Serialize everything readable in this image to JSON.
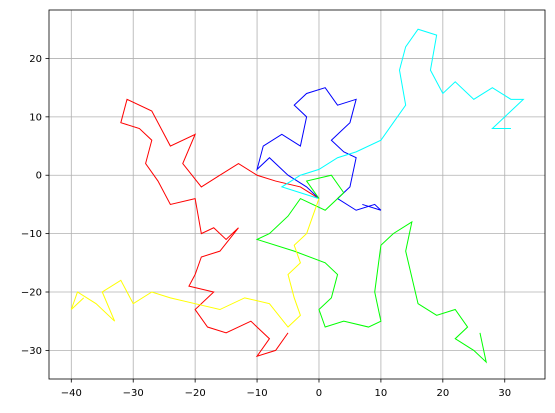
{
  "chart_data": {
    "type": "line",
    "grid": true,
    "xlim": [
      -43.6,
      36.5
    ],
    "ylim": [
      -34.9,
      28.3
    ],
    "xticks": [
      {
        "value": -40,
        "label": "−40"
      },
      {
        "value": -30,
        "label": "−30"
      },
      {
        "value": -20,
        "label": "−20"
      },
      {
        "value": -10,
        "label": "−10"
      },
      0,
      10,
      20,
      30
    ],
    "yticks": [
      {
        "value": -30,
        "label": "−30"
      },
      {
        "value": -20,
        "label": "−20"
      },
      {
        "value": -10,
        "label": "−10"
      },
      0,
      10,
      20
    ],
    "series": [
      {
        "color": "#ff0000",
        "x": [
          0,
          -3,
          -7,
          -10,
          -13,
          -16,
          -19,
          -22,
          -20,
          -24,
          -27,
          -31,
          -32,
          -29,
          -27,
          -28,
          -26,
          -24,
          -20,
          -19,
          -17,
          -15,
          -13,
          -16,
          -19,
          -20,
          -21,
          -17,
          -20,
          -18,
          -15,
          -11,
          -8,
          -10,
          -7,
          -5
        ],
        "values": [
          -4,
          -2,
          -1,
          0,
          2,
          0,
          -2,
          2,
          7,
          5,
          11,
          13,
          9,
          8,
          6,
          2,
          -1,
          -5,
          -4,
          -10,
          -9,
          -11,
          -9,
          -13,
          -14,
          -17,
          -19,
          -20,
          -23,
          -26,
          -27,
          -25,
          -28,
          -31,
          -30,
          -27
        ]
      },
      {
        "color": "#0000ff",
        "x": [
          0,
          -2,
          -5,
          -8,
          -10,
          -9,
          -6,
          -3,
          -2,
          -4,
          -2,
          1,
          3,
          6,
          5,
          2,
          4,
          6,
          5,
          3,
          6,
          9,
          10,
          7
        ],
        "values": [
          -4,
          -2,
          0,
          3,
          1,
          5,
          7,
          5,
          10,
          12,
          14,
          15,
          12,
          13,
          9,
          6,
          4,
          3,
          -2,
          -4,
          -6,
          -5,
          -6,
          -5
        ]
      },
      {
        "color": "#00ffff",
        "x": [
          0,
          -3,
          -6,
          -3,
          0,
          3,
          6,
          10,
          12,
          14,
          13,
          14,
          16,
          19,
          18,
          20,
          22,
          25,
          28,
          31,
          33,
          30,
          28,
          31
        ],
        "values": [
          -4,
          -3,
          -2,
          0,
          1,
          3,
          4,
          6,
          9,
          12,
          18,
          22,
          25,
          24,
          18,
          14,
          16,
          13,
          15,
          13,
          13,
          10,
          8,
          8
        ]
      },
      {
        "color": "#00ff00",
        "x": [
          0,
          -2,
          2,
          4,
          1,
          -3,
          -5,
          -8,
          -10,
          -4,
          1,
          3,
          2,
          0,
          1,
          4,
          8,
          10,
          9,
          10,
          12,
          15,
          14,
          16,
          19,
          22,
          24,
          22,
          25,
          27,
          26
        ],
        "values": [
          -4,
          -1,
          0,
          -3,
          -6,
          -4,
          -7,
          -10,
          -11,
          -13,
          -15,
          -17,
          -21,
          -23,
          -26,
          -25,
          -26,
          -25,
          -20,
          -12,
          -10,
          -8,
          -13,
          -22,
          -24,
          -23,
          -26,
          -28,
          -30,
          -32,
          -27
        ]
      },
      {
        "color": "#ffff00",
        "x": [
          0,
          -1,
          -2,
          -4,
          -3,
          -5,
          -4,
          -3,
          -5,
          -8,
          -12,
          -16,
          -20,
          -24,
          -27,
          -30,
          -32,
          -35,
          -33,
          -36,
          -39,
          -40,
          -38
        ],
        "values": [
          -4,
          -7,
          -10,
          -12,
          -15,
          -17,
          -21,
          -24,
          -26,
          -22,
          -21,
          -23,
          -22,
          -21,
          -20,
          -22,
          -18,
          -20,
          -25,
          -22,
          -20,
          -23,
          -21
        ]
      }
    ]
  }
}
